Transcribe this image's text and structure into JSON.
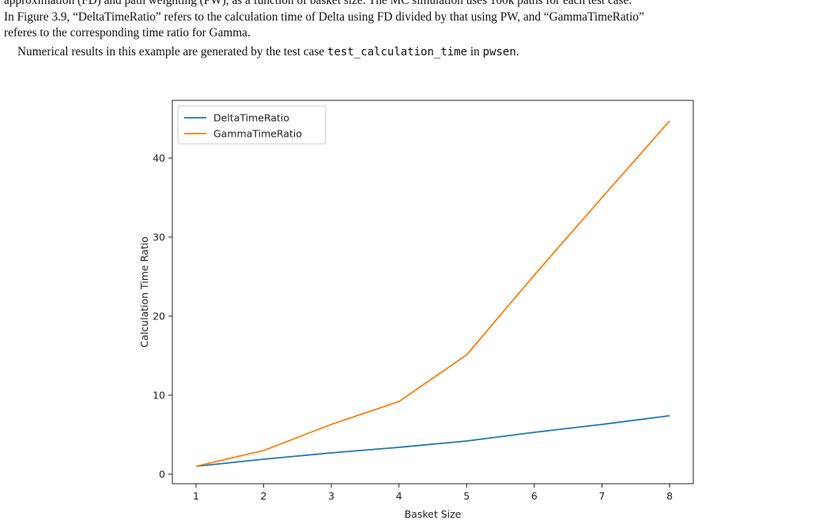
{
  "document": {
    "lines": [
      "approximation (FD) and path weighting (PW), as a function of basket size. The MC simulation uses 100k paths for each test case.",
      "In Figure 3.9, “DeltaTimeRatio” refers to the calculation time of Delta using FD divided by that using PW, and “GammaTimeRatio”",
      "referes to the corresponding time ratio for Gamma."
    ],
    "results_prefix": "Numerical results in this example are generated by the test case ",
    "results_code1": "test_calculation_time",
    "results_mid": " in ",
    "results_code2": "pwsen",
    "results_suffix": "."
  },
  "chart_data": {
    "type": "line",
    "xlabel": "Basket Size",
    "ylabel": "Calculation Time Ratio",
    "x": [
      1,
      2,
      3,
      4,
      5,
      6,
      7,
      8
    ],
    "xticks": [
      "1",
      "2",
      "3",
      "4",
      "5",
      "6",
      "7",
      "8"
    ],
    "yticks": [
      "0",
      "10",
      "20",
      "30",
      "40"
    ],
    "ylim": [
      -1.2,
      47.3
    ],
    "xlim": [
      0.65,
      8.35
    ],
    "grid": false,
    "legend_position": "top-left",
    "series": [
      {
        "name": "DeltaTimeRatio",
        "color": "#1f77b4",
        "values": [
          1.0,
          1.9,
          2.7,
          3.4,
          4.2,
          5.3,
          6.3,
          7.4
        ]
      },
      {
        "name": "GammaTimeRatio",
        "color": "#ff7f0e",
        "values": [
          1.0,
          3.0,
          6.3,
          9.2,
          15.1,
          25.2,
          35.0,
          44.7
        ]
      }
    ]
  }
}
